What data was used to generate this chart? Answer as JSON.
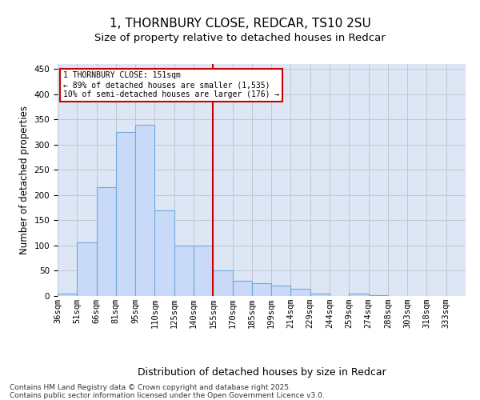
{
  "title": "1, THORNBURY CLOSE, REDCAR, TS10 2SU",
  "subtitle": "Size of property relative to detached houses in Redcar",
  "xlabel": "Distribution of detached houses by size in Redcar",
  "ylabel": "Number of detached properties",
  "categories": [
    "36sqm",
    "51sqm",
    "66sqm",
    "81sqm",
    "95sqm",
    "110sqm",
    "125sqm",
    "140sqm",
    "155sqm",
    "170sqm",
    "185sqm",
    "199sqm",
    "214sqm",
    "229sqm",
    "244sqm",
    "259sqm",
    "274sqm",
    "288sqm",
    "303sqm",
    "318sqm",
    "333sqm"
  ],
  "bar_heights": [
    5,
    106,
    215,
    325,
    340,
    170,
    100,
    100,
    50,
    30,
    25,
    20,
    15,
    5,
    0,
    5,
    1,
    0,
    0,
    0,
    0
  ],
  "bar_color": "#c9daf8",
  "bar_edge_color": "#6fa8dc",
  "grid_color": "#c0c0c8",
  "bg_color": "#dce6f5",
  "vline_x": 8,
  "vline_color": "#cc0000",
  "annotation_text": "1 THORNBURY CLOSE: 151sqm\n← 89% of detached houses are smaller (1,535)\n10% of semi-detached houses are larger (176) →",
  "annotation_box_color": "#ffffff",
  "annotation_border_color": "#cc0000",
  "footer": "Contains HM Land Registry data © Crown copyright and database right 2025.\nContains public sector information licensed under the Open Government Licence v3.0.",
  "ylim": [
    0,
    460
  ],
  "yticks": [
    0,
    50,
    100,
    150,
    200,
    250,
    300,
    350,
    400,
    450
  ],
  "title_fontsize": 11,
  "subtitle_fontsize": 9.5,
  "xlabel_fontsize": 9,
  "ylabel_fontsize": 8.5,
  "tick_fontsize": 7.5,
  "footer_fontsize": 6.5
}
